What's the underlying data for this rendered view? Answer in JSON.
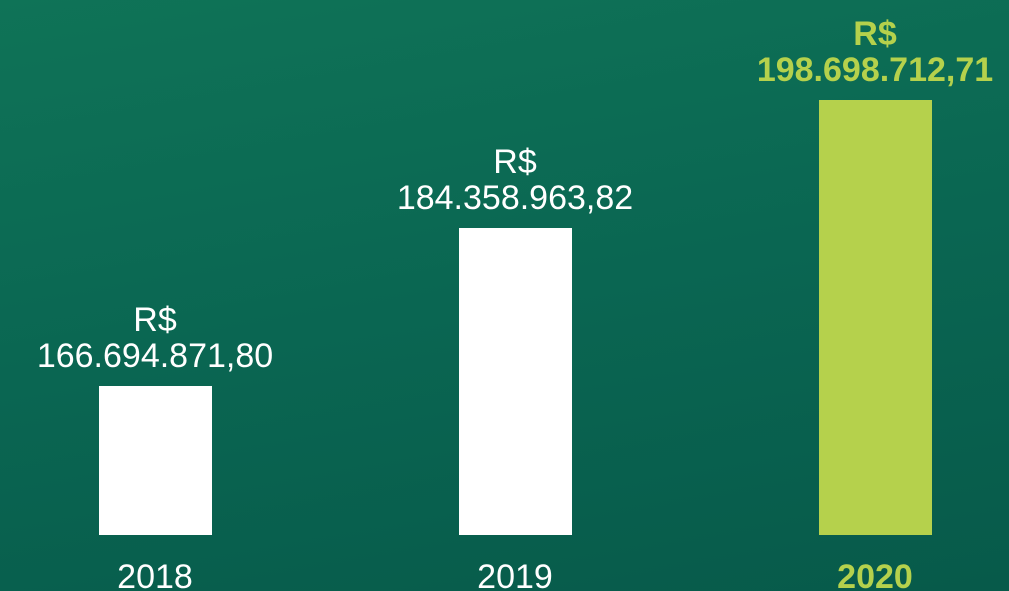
{
  "chart_data": {
    "type": "bar",
    "categories": [
      "2018",
      "2019",
      "2020"
    ],
    "values": [
      166694871.8,
      184358963.82,
      198698712.71
    ],
    "value_labels": [
      "R$\n166.694.871,80",
      "R$\n184.358.963,82",
      "R$\n198.698.712,71"
    ],
    "colors": [
      "#ffffff",
      "#ffffff",
      "#b5d14c"
    ],
    "highlight": "2020",
    "ylim": [
      150000000,
      200000000
    ]
  }
}
